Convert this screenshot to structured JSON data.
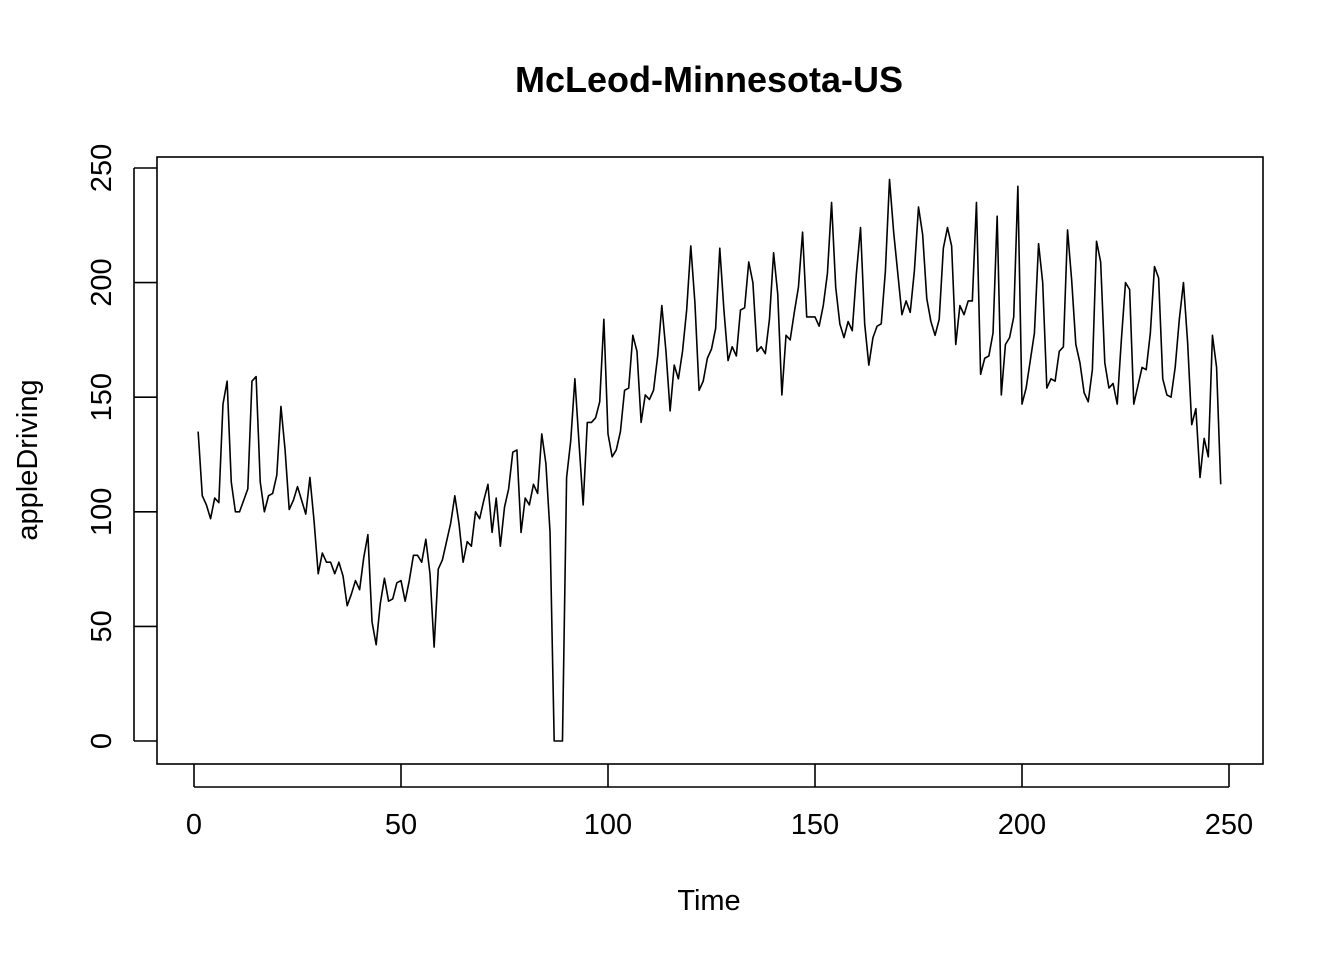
{
  "chart_data": {
    "type": "line",
    "title": "McLeod-Minnesota-US",
    "xlabel": "Time",
    "ylabel": "appleDriving",
    "xlim": [
      1,
      248
    ],
    "ylim": [
      0,
      245
    ],
    "x_ticks": [
      0,
      50,
      100,
      150,
      200,
      250
    ],
    "y_ticks": [
      0,
      50,
      100,
      150,
      200,
      250
    ],
    "grid": false,
    "legend": "none",
    "line_color": "#000000",
    "series": [
      {
        "x_start": 1,
        "x_step": 1,
        "values": [
          135,
          107,
          103,
          97,
          106,
          104,
          147,
          157,
          113,
          100,
          100,
          105,
          110,
          157,
          159,
          113,
          100,
          107,
          108,
          116,
          146,
          127,
          101,
          105,
          111,
          105,
          99,
          115,
          96,
          73,
          82,
          78,
          78,
          73,
          78,
          72,
          59,
          64,
          70,
          66,
          80,
          90,
          52,
          42,
          60,
          71,
          61,
          62,
          69,
          70,
          61,
          70,
          81,
          81,
          78,
          88,
          73,
          41,
          75,
          79,
          87,
          95,
          107,
          95,
          78,
          87,
          85,
          100,
          97,
          105,
          112,
          91,
          106,
          85,
          102,
          110,
          126,
          127,
          91,
          106,
          103,
          112,
          108,
          134,
          121,
          91,
          0,
          0,
          0,
          115,
          131,
          158,
          130,
          103,
          139,
          139,
          141,
          148,
          184,
          134,
          124,
          127,
          135,
          153,
          154,
          177,
          170,
          139,
          151,
          149,
          153,
          168,
          190,
          170,
          144,
          164,
          158,
          170,
          188,
          216,
          191,
          153,
          157,
          167,
          171,
          180,
          215,
          188,
          166,
          172,
          168,
          188,
          189,
          209,
          200,
          170,
          172,
          169,
          184,
          213,
          195,
          151,
          177,
          175,
          187,
          198,
          222,
          185,
          185,
          185,
          181,
          190,
          204,
          235,
          198,
          182,
          176,
          183,
          179,
          204,
          224,
          182,
          164,
          176,
          181,
          182,
          205,
          245,
          222,
          204,
          186,
          192,
          187,
          205,
          233,
          221,
          193,
          183,
          177,
          184,
          215,
          224,
          216,
          173,
          190,
          186,
          192,
          192,
          235,
          160,
          167,
          168,
          178,
          229,
          151,
          173,
          176,
          185,
          242,
          147,
          154,
          166,
          178,
          217,
          200,
          154,
          158,
          157,
          170,
          172,
          223,
          201,
          173,
          165,
          152,
          148,
          162,
          218,
          209,
          165,
          154,
          156,
          147,
          175,
          200,
          197,
          147,
          155,
          163,
          162,
          178,
          207,
          202,
          158,
          151,
          150,
          163,
          184,
          200,
          174,
          138,
          145,
          115,
          132,
          124,
          177,
          163,
          112
        ]
      }
    ]
  }
}
